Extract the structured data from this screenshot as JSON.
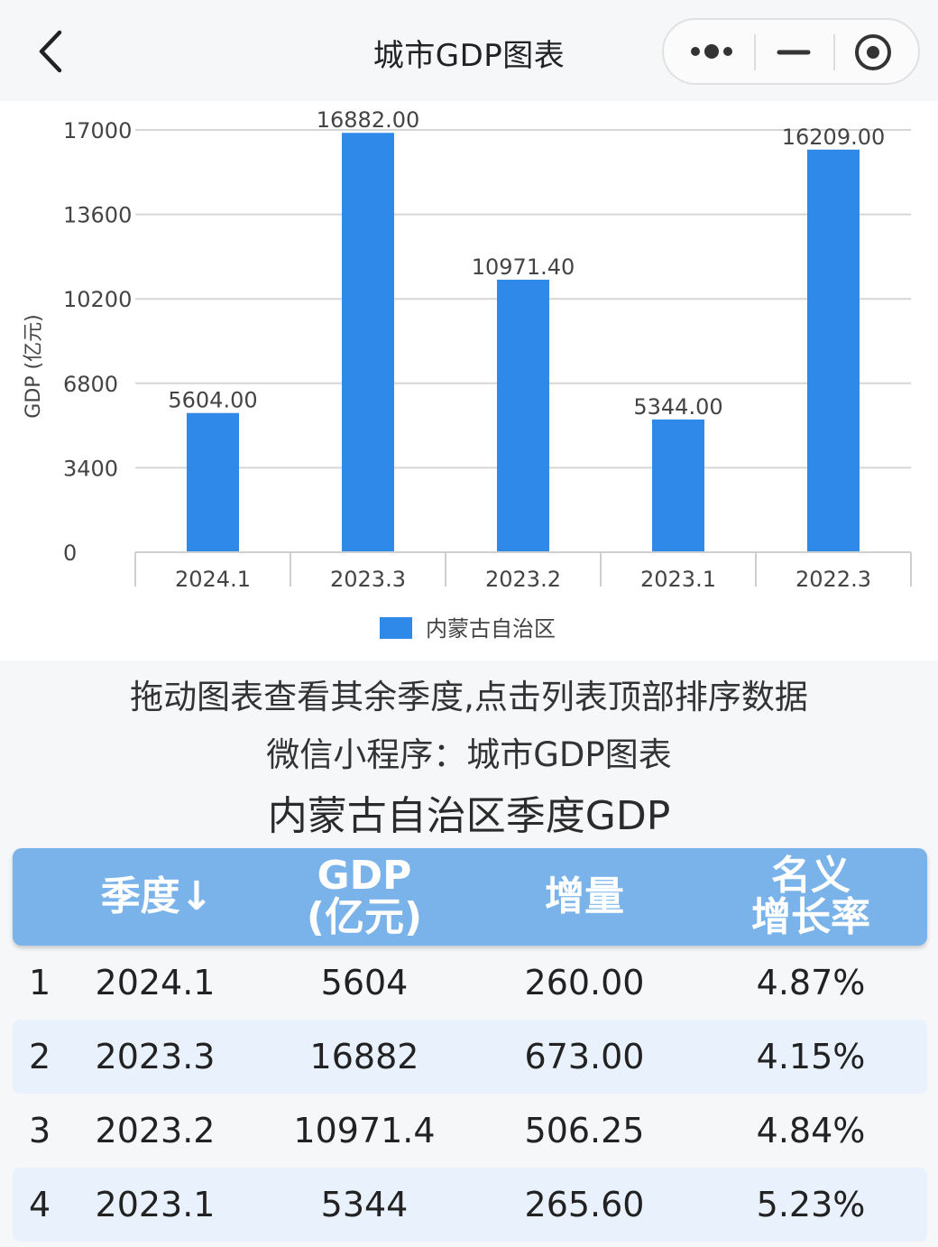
{
  "topbar": {
    "title": "城市GDP图表",
    "back_icon": "chevron-left-icon",
    "more_icon": "more-dots-icon",
    "minimize_icon": "minus-icon",
    "close_icon": "target-circle-icon"
  },
  "chart_data": {
    "type": "bar",
    "categories": [
      "2024.1",
      "2023.3",
      "2023.2",
      "2023.1",
      "2022.3"
    ],
    "series": [
      {
        "name": "内蒙古自治区",
        "values": [
          5604.0,
          16882.0,
          10971.4,
          5344.0,
          16209.0
        ],
        "color": "#2f89e8"
      }
    ],
    "data_labels": [
      "5604.00",
      "16882.00",
      "10971.40",
      "5344.00",
      "16209.00"
    ],
    "ylabel": "GDP (亿元)",
    "ylim": [
      0,
      17000
    ],
    "yticks": [
      "0",
      "3400",
      "6800",
      "10200",
      "13600",
      "17000"
    ],
    "grid": true,
    "legend": "bottom"
  },
  "hints": {
    "line1": "拖动图表查看其余季度,点击列表顶部排序数据",
    "line2": "微信小程序：城市GDP图表"
  },
  "section_title": "内蒙古自治区季度GDP",
  "table": {
    "headers": [
      "季度↓",
      "GDP\n(亿元)",
      "增量",
      "名义\n增长率"
    ],
    "rows": [
      {
        "idx": "1",
        "quarter": "2024.1",
        "gdp": "5604",
        "increase": "260.00",
        "rate": "4.87%"
      },
      {
        "idx": "2",
        "quarter": "2023.3",
        "gdp": "16882",
        "increase": "673.00",
        "rate": "4.15%"
      },
      {
        "idx": "3",
        "quarter": "2023.2",
        "gdp": "10971.4",
        "increase": "506.25",
        "rate": "4.84%"
      },
      {
        "idx": "4",
        "quarter": "2023.1",
        "gdp": "5344",
        "increase": "265.60",
        "rate": "5.23%"
      }
    ]
  },
  "colors": {
    "bar": "#2f89e8",
    "table_header": "#7ab3ea",
    "row_alt": "#e8f1fc"
  }
}
